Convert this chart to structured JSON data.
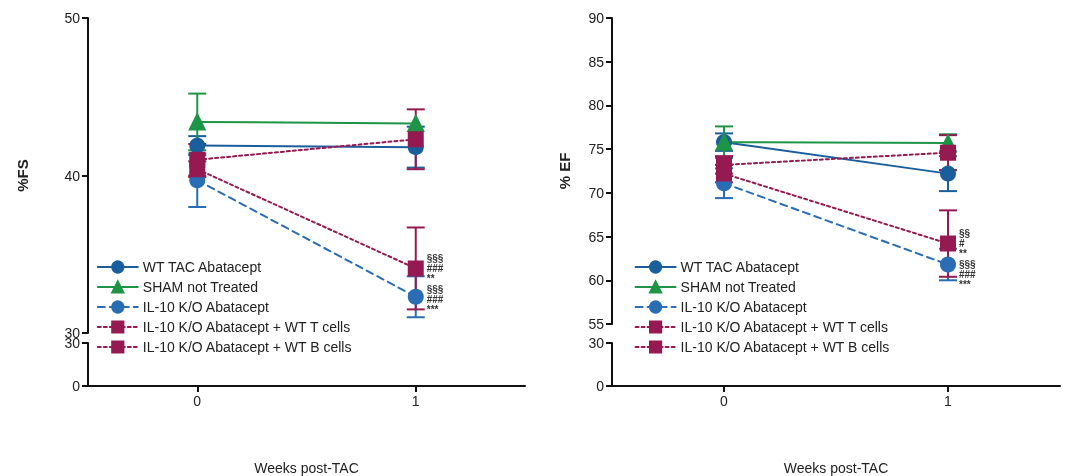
{
  "chart_data": [
    {
      "type": "line",
      "ylabel": "%FS",
      "categories": [
        "0",
        "1"
      ],
      "ylim": [
        30,
        50
      ],
      "yticks": [
        30,
        40,
        50
      ],
      "tick_labels": "y",
      "legend": "bottom left",
      "grid": false,
      "series": [
        {
          "name": "WT TAC Abatacept",
          "color": "#1b5e9c",
          "marker": "circle",
          "line_style": "solid",
          "values": [
            41.9,
            41.8
          ],
          "errors": [
            0.6,
            1.3
          ]
        },
        {
          "name": "SHAM not Treated",
          "color": "#1e9446",
          "marker": "triangle",
          "line_style": "solid",
          "values": [
            43.4,
            43.3
          ],
          "errors": [
            1.8,
            null
          ]
        },
        {
          "name": "IL-10 K/O Abatacept",
          "color": "#2a6db5",
          "marker": "circle",
          "line_style": "dashed",
          "values": [
            39.7,
            32.3
          ],
          "errors": [
            1.7,
            1.3
          ]
        },
        {
          "name": "IL-10 K/O Abatacept + WT T cells",
          "color": "#951a52",
          "marker": "square",
          "line_style": "dotted",
          "values": [
            40.4,
            34.1
          ],
          "errors": [
            0.5,
            2.6
          ]
        },
        {
          "name": "IL-10 K/O Abatacept + WT B cells",
          "color": "#951a52",
          "marker": "square",
          "line_style": "dotted",
          "values": [
            41.0,
            42.3
          ],
          "errors": [
            1.0,
            1.9
          ]
        }
      ],
      "annotations": [
        {
          "text": "§§§\n###\n**",
          "x": "1",
          "y": 34.1
        },
        {
          "text": "§§§\n###\n***",
          "x": "1",
          "y": 32.3
        }
      ]
    },
    {
      "type": "line",
      "xlabel": "Weeks post-TAC",
      "categories": [
        "0",
        "1"
      ],
      "ylim": [
        0,
        30
      ],
      "yticks": [
        0,
        30
      ]
    },
    {
      "type": "line",
      "ylabel": "% EF",
      "categories": [
        "0",
        "1"
      ],
      "ylim": [
        55,
        90
      ],
      "yticks": [
        55,
        60,
        65,
        70,
        75,
        80,
        85,
        90
      ],
      "tick_labels": "y",
      "legend": "bottom left",
      "grid": false,
      "series": [
        {
          "name": "WT TAC Abatacept",
          "color": "#1b5e9c",
          "marker": "circle",
          "line_style": "solid",
          "values": [
            75.8,
            72.2
          ],
          "errors": [
            1.0,
            2.0
          ]
        },
        {
          "name": "SHAM not Treated",
          "color": "#1e9446",
          "marker": "triangle",
          "line_style": "solid",
          "values": [
            75.8,
            75.7
          ],
          "errors": [
            1.8,
            1.0
          ]
        },
        {
          "name": "IL-10 K/O Abatacept",
          "color": "#2a6db5",
          "marker": "circle",
          "line_style": "dashed",
          "values": [
            71.1,
            61.8
          ],
          "errors": [
            1.7,
            1.8
          ]
        },
        {
          "name": "IL-10 K/O Abatacept + WT T cells",
          "color": "#951a52",
          "marker": "square",
          "line_style": "dotted",
          "values": [
            72.2,
            64.2
          ],
          "errors": [
            1.0,
            3.8
          ]
        },
        {
          "name": "IL-10 K/O Abatacept + WT B cells",
          "color": "#951a52",
          "marker": "square",
          "line_style": "dotted",
          "values": [
            73.2,
            74.6
          ],
          "errors": [
            1.0,
            2.0
          ]
        }
      ],
      "annotations": [
        {
          "text": "§§\n#\n**",
          "x": "1",
          "y": 64.2
        },
        {
          "text": "§§§\n###\n***",
          "x": "1",
          "y": 61.8
        }
      ]
    },
    {
      "type": "line",
      "xlabel": "Weeks post-TAC",
      "categories": [
        "0",
        "1"
      ],
      "ylim": [
        0,
        30
      ],
      "yticks": [
        0,
        30
      ]
    }
  ]
}
